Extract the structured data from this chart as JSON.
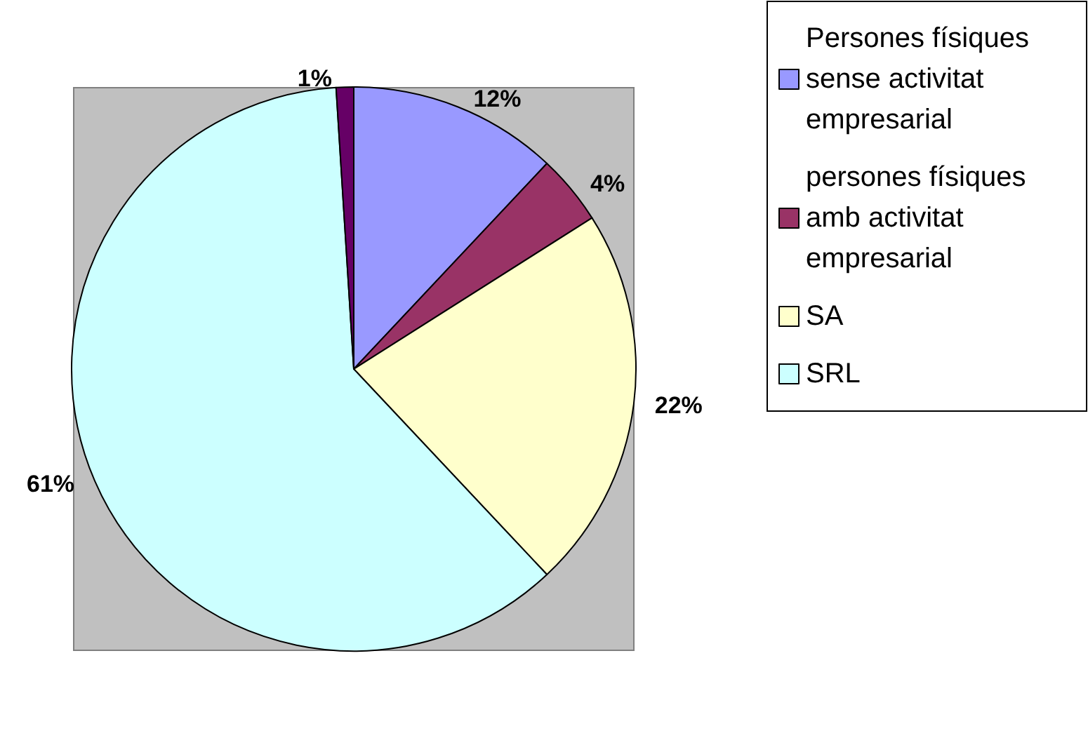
{
  "chart_data": {
    "type": "pie",
    "categories": [
      "Persones físiques sense activitat empresarial",
      "persones físiques amb activitat empresarial",
      "SA",
      "SRL",
      null
    ],
    "values": [
      12,
      4,
      22,
      61,
      1
    ],
    "colors": [
      "#9999ff",
      "#993366",
      "#ffffcc",
      "#ccffff",
      "#660066"
    ],
    "value_labels": [
      "12%",
      "4%",
      "22%",
      "61%",
      "1%"
    ],
    "legend": "right"
  }
}
